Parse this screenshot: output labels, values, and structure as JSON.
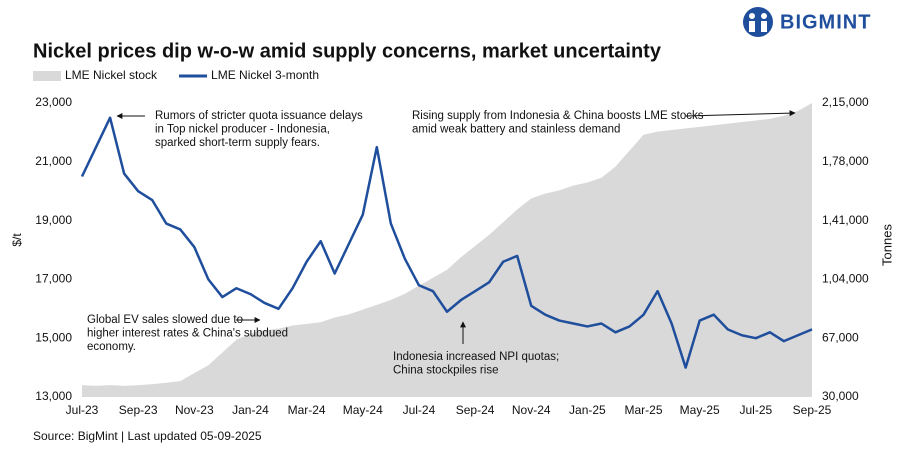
{
  "brand": "BIGMINT",
  "chart_data": {
    "type": "line",
    "title": "Nickel prices dip w-o-w amid supply concerns, market uncertainty",
    "source": "Source: BigMint | Last updated 05-09-2025",
    "y_label": "$/t",
    "y2_label": "Tonnes",
    "legend": "top-left",
    "categories": [
      "Jul-23",
      null,
      null,
      null,
      "Sep-23",
      null,
      null,
      null,
      "Nov-23",
      null,
      null,
      null,
      "Jan-24",
      null,
      null,
      null,
      "Mar-24",
      null,
      null,
      null,
      "May-24",
      null,
      null,
      null,
      "Jul-24",
      null,
      null,
      null,
      "Sep-24",
      null,
      null,
      null,
      "Nov-24",
      null,
      null,
      null,
      "Jan-25",
      null,
      null,
      null,
      "Mar-25",
      null,
      null,
      null,
      "May-25",
      null,
      null,
      null,
      "Jul-25",
      null,
      null,
      null,
      "Sep-25"
    ],
    "series": [
      {
        "name": "LME Nickel stock",
        "type": "area",
        "axis": "y2",
        "color": "#d9d9d9",
        "values": [
          37500,
          37000,
          37500,
          37000,
          37500,
          38000,
          39000,
          40000,
          45000,
          50000,
          58000,
          66000,
          70000,
          72000,
          73000,
          75000,
          76000,
          77000,
          80000,
          82000,
          85000,
          88000,
          91000,
          95000,
          100000,
          105000,
          110000,
          118000,
          125000,
          132000,
          140000,
          148000,
          155000,
          158000,
          160000,
          163000,
          165000,
          168000,
          175000,
          185000,
          195000,
          197000,
          198000,
          199000,
          200000,
          201000,
          202000,
          203000,
          204000,
          205000,
          207000,
          210000,
          215000
        ]
      },
      {
        "name": "LME Nickel 3-month",
        "type": "line",
        "color": "#1f4e9c",
        "values": [
          20500,
          21500,
          22500,
          20600,
          20000,
          19700,
          18900,
          18700,
          18100,
          17000,
          16400,
          16700,
          16500,
          16200,
          16000,
          16700,
          17600,
          18300,
          17200,
          18200,
          19200,
          21500,
          18900,
          17700,
          16800,
          16600,
          15900,
          16300,
          16600,
          16900,
          17600,
          17800,
          16100,
          15800,
          15600,
          15500,
          15400,
          15500,
          15200,
          15400,
          15800,
          16600,
          15500,
          14000,
          15600,
          15800,
          15300,
          15100,
          15000,
          15200,
          14900,
          15100,
          15300
        ]
      }
    ],
    "ylim": [
      13000,
      23000
    ],
    "yticks": [
      {
        "value": 13000,
        "label": "13,000"
      },
      {
        "value": 15000,
        "label": "15,000"
      },
      {
        "value": 17000,
        "label": "17,000"
      },
      {
        "value": 19000,
        "label": "19,000"
      },
      {
        "value": 21000,
        "label": "21,000"
      },
      {
        "value": 23000,
        "label": "23,000"
      }
    ],
    "y2lim": [
      30000,
      215000
    ],
    "y2ticks": [
      {
        "value": 30000,
        "label": "30,000"
      },
      {
        "value": 67000,
        "label": "67,000"
      },
      {
        "value": 104000,
        "label": "1,04,000"
      },
      {
        "value": 141000,
        "label": "1,41,000"
      },
      {
        "value": 178000,
        "label": "1,78,000"
      },
      {
        "value": 215000,
        "label": "2,15,000"
      }
    ],
    "annotations": [
      {
        "lines": [
          "Rumors of stricter quota issuance delays",
          "in Top nickel producer - Indonesia,",
          "sparked short-term supply fears."
        ]
      },
      {
        "lines": [
          "Rising supply from Indonesia & China boosts LME stocks",
          "amid weak battery and stainless demand"
        ]
      },
      {
        "lines": [
          "Global EV sales slowed due to",
          "higher interest rates & China's subdued",
          "economy."
        ]
      },
      {
        "lines": [
          "Indonesia increased NPI quotas;",
          "China stockpiles rise"
        ]
      }
    ]
  }
}
